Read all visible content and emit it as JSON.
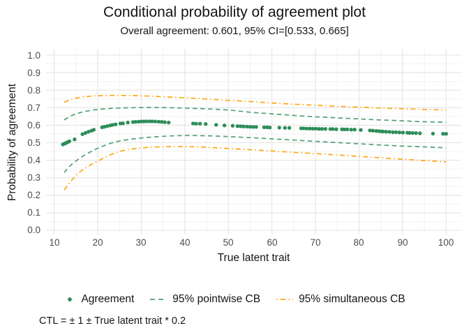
{
  "title": "Conditional probability of agreement plot",
  "subtitle": "Overall agreement: 0.601, 95% CI=[0.533, 0.665]",
  "caption": "CTL = ± 1 ± True latent trait * 0.2",
  "axes": {
    "x_label": "True latent trait",
    "y_label": "Probability of agreement"
  },
  "legend": {
    "items": [
      {
        "label": "Agreement"
      },
      {
        "label": "95% pointwise CB"
      },
      {
        "label": "95% simultaneous CB"
      }
    ]
  },
  "colors": {
    "agreement": "#2e8e58",
    "pointwise": "#52a174",
    "simultaneous": "#ffa511",
    "grid_major": "#e4e4e4",
    "grid_minor": "#f2f2f2",
    "tick_text": "#4d4d4d"
  },
  "chart_data": {
    "type": "scatter",
    "title": "Conditional probability of agreement plot",
    "subtitle": "Overall agreement: 0.601, 95% CI=[0.533, 0.665]",
    "xlabel": "True latent trait",
    "ylabel": "Probability of agreement",
    "overall_agreement": 0.601,
    "overall_ci": [
      0.533,
      0.665
    ],
    "x_ticks": [
      10,
      20,
      30,
      40,
      50,
      60,
      70,
      80,
      90,
      100
    ],
    "x_minor_ticks": [
      15,
      25,
      35,
      45,
      55,
      65,
      75,
      85,
      95
    ],
    "y_ticks": [
      0.0,
      0.1,
      0.2,
      0.3,
      0.4,
      0.5,
      0.6,
      0.7,
      0.8,
      0.9,
      1.0
    ],
    "y_tick_labels": [
      "0.0",
      "0.1",
      "0.2",
      "0.3",
      "0.4",
      "0.5",
      "0.6",
      "0.7",
      "0.8",
      "0.9",
      "1.0"
    ],
    "y_minor_ticks": [
      0.05,
      0.15,
      0.25,
      0.35,
      0.45,
      0.55,
      0.65,
      0.75,
      0.85,
      0.95
    ],
    "x_domain": [
      8.14,
      103.5
    ],
    "y_domain": [
      -0.024,
      1.036
    ],
    "grid": true,
    "legend_position": "bottom",
    "series": [
      {
        "name": "Agreement",
        "kind": "points",
        "color": "#2e8e58",
        "points": [
          [
            12.0,
            0.49
          ],
          [
            12.3,
            0.494
          ],
          [
            12.6,
            0.497
          ],
          [
            12.9,
            0.501
          ],
          [
            13.2,
            0.505
          ],
          [
            13.5,
            0.508
          ],
          [
            14.7,
            0.519
          ],
          [
            16.5,
            0.549
          ],
          [
            17.2,
            0.556
          ],
          [
            17.9,
            0.563
          ],
          [
            18.6,
            0.569
          ],
          [
            19.1,
            0.574
          ],
          [
            21.0,
            0.588
          ],
          [
            21.5,
            0.591
          ],
          [
            22.2,
            0.595
          ],
          [
            22.9,
            0.599
          ],
          [
            23.4,
            0.602
          ],
          [
            24.1,
            0.605
          ],
          [
            25.2,
            0.61
          ],
          [
            25.8,
            0.611
          ],
          [
            26.9,
            0.615
          ],
          [
            28.1,
            0.618
          ],
          [
            28.7,
            0.619
          ],
          [
            29.4,
            0.62
          ],
          [
            30.0,
            0.621
          ],
          [
            30.6,
            0.621
          ],
          [
            31.2,
            0.622
          ],
          [
            31.9,
            0.622
          ],
          [
            32.5,
            0.622
          ],
          [
            33.2,
            0.621
          ],
          [
            34.0,
            0.62
          ],
          [
            34.7,
            0.619
          ],
          [
            35.4,
            0.617
          ],
          [
            36.3,
            0.615
          ],
          [
            41.9,
            0.61
          ],
          [
            42.6,
            0.609
          ],
          [
            43.5,
            0.609
          ],
          [
            44.8,
            0.607
          ],
          [
            47.2,
            0.602
          ],
          [
            49.1,
            0.599
          ],
          [
            51.0,
            0.597
          ],
          [
            52.1,
            0.595
          ],
          [
            52.8,
            0.594
          ],
          [
            53.5,
            0.593
          ],
          [
            54.3,
            0.592
          ],
          [
            55.0,
            0.591
          ],
          [
            55.7,
            0.59
          ],
          [
            56.4,
            0.59
          ],
          [
            58.2,
            0.588
          ],
          [
            58.9,
            0.588
          ],
          [
            59.5,
            0.587
          ],
          [
            61.7,
            0.586
          ],
          [
            63.0,
            0.585
          ],
          [
            64.0,
            0.585
          ],
          [
            66.7,
            0.582
          ],
          [
            67.3,
            0.582
          ],
          [
            68.0,
            0.581
          ],
          [
            68.7,
            0.581
          ],
          [
            69.4,
            0.58
          ],
          [
            70.1,
            0.58
          ],
          [
            70.8,
            0.579
          ],
          [
            71.5,
            0.579
          ],
          [
            72.3,
            0.579
          ],
          [
            73.4,
            0.578
          ],
          [
            74.0,
            0.578
          ],
          [
            74.8,
            0.577
          ],
          [
            76.1,
            0.577
          ],
          [
            76.6,
            0.576
          ],
          [
            77.3,
            0.576
          ],
          [
            78.2,
            0.575
          ],
          [
            79.0,
            0.575
          ],
          [
            80.4,
            0.573
          ],
          [
            82.5,
            0.57
          ],
          [
            83.2,
            0.569
          ],
          [
            84.0,
            0.567
          ],
          [
            84.6,
            0.566
          ],
          [
            85.2,
            0.564
          ],
          [
            85.5,
            0.564
          ],
          [
            86.2,
            0.563
          ],
          [
            87.0,
            0.562
          ],
          [
            87.8,
            0.56
          ],
          [
            88.5,
            0.56
          ],
          [
            89.3,
            0.559
          ],
          [
            90.1,
            0.558
          ],
          [
            91.1,
            0.557
          ],
          [
            91.6,
            0.556
          ],
          [
            92.3,
            0.556
          ],
          [
            93.1,
            0.555
          ],
          [
            94.0,
            0.554
          ],
          [
            97.0,
            0.552
          ],
          [
            99.3,
            0.551
          ],
          [
            100.0,
            0.551
          ]
        ]
      },
      {
        "name": "95% pointwise CB (upper)",
        "kind": "line",
        "style": "dashed",
        "color": "#52a174",
        "points": [
          [
            12.3,
            0.63
          ],
          [
            14,
            0.655
          ],
          [
            16,
            0.672
          ],
          [
            18,
            0.683
          ],
          [
            20,
            0.69
          ],
          [
            23,
            0.696
          ],
          [
            26,
            0.699
          ],
          [
            30,
            0.701
          ],
          [
            34,
            0.701
          ],
          [
            38,
            0.699
          ],
          [
            42,
            0.696
          ],
          [
            46,
            0.692
          ],
          [
            50,
            0.687
          ],
          [
            55,
            0.674
          ],
          [
            60,
            0.665
          ],
          [
            65,
            0.656
          ],
          [
            70,
            0.648
          ],
          [
            75,
            0.642
          ],
          [
            80,
            0.636
          ],
          [
            85,
            0.63
          ],
          [
            90,
            0.625
          ],
          [
            95,
            0.62
          ],
          [
            100,
            0.617
          ]
        ]
      },
      {
        "name": "95% pointwise CB (lower)",
        "kind": "line",
        "style": "dashed",
        "color": "#52a174",
        "points": [
          [
            12.3,
            0.33
          ],
          [
            14,
            0.376
          ],
          [
            16,
            0.413
          ],
          [
            18,
            0.443
          ],
          [
            20,
            0.468
          ],
          [
            23,
            0.497
          ],
          [
            26,
            0.514
          ],
          [
            30,
            0.527
          ],
          [
            34,
            0.535
          ],
          [
            38,
            0.54
          ],
          [
            42,
            0.541
          ],
          [
            46,
            0.539
          ],
          [
            50,
            0.535
          ],
          [
            55,
            0.529
          ],
          [
            60,
            0.522
          ],
          [
            65,
            0.515
          ],
          [
            70,
            0.508
          ],
          [
            75,
            0.501
          ],
          [
            80,
            0.494
          ],
          [
            85,
            0.487
          ],
          [
            90,
            0.481
          ],
          [
            95,
            0.476
          ],
          [
            100,
            0.471
          ]
        ]
      },
      {
        "name": "95% simultaneous CB (upper)",
        "kind": "line",
        "style": "dashdot",
        "color": "#ffa511",
        "points": [
          [
            12.3,
            0.731
          ],
          [
            14,
            0.748
          ],
          [
            16,
            0.759
          ],
          [
            18,
            0.765
          ],
          [
            20,
            0.768
          ],
          [
            23,
            0.77
          ],
          [
            26,
            0.77
          ],
          [
            30,
            0.768
          ],
          [
            34,
            0.764
          ],
          [
            38,
            0.759
          ],
          [
            42,
            0.754
          ],
          [
            46,
            0.748
          ],
          [
            50,
            0.742
          ],
          [
            55,
            0.735
          ],
          [
            60,
            0.727
          ],
          [
            65,
            0.72
          ],
          [
            70,
            0.714
          ],
          [
            75,
            0.708
          ],
          [
            80,
            0.703
          ],
          [
            85,
            0.698
          ],
          [
            90,
            0.694
          ],
          [
            95,
            0.69
          ],
          [
            100,
            0.687
          ]
        ]
      },
      {
        "name": "95% simultaneous CB (lower)",
        "kind": "line",
        "style": "dashdot",
        "color": "#ffa511",
        "points": [
          [
            12.3,
            0.23
          ],
          [
            14,
            0.285
          ],
          [
            16,
            0.335
          ],
          [
            18,
            0.368
          ],
          [
            20,
            0.395
          ],
          [
            23,
            0.432
          ],
          [
            26,
            0.456
          ],
          [
            30,
            0.47
          ],
          [
            34,
            0.476
          ],
          [
            38,
            0.478
          ],
          [
            42,
            0.477
          ],
          [
            46,
            0.473
          ],
          [
            50,
            0.467
          ],
          [
            55,
            0.46
          ],
          [
            60,
            0.453
          ],
          [
            65,
            0.445
          ],
          [
            70,
            0.438
          ],
          [
            75,
            0.43
          ],
          [
            80,
            0.422
          ],
          [
            85,
            0.414
          ],
          [
            90,
            0.406
          ],
          [
            95,
            0.398
          ],
          [
            100,
            0.391
          ]
        ]
      }
    ]
  }
}
